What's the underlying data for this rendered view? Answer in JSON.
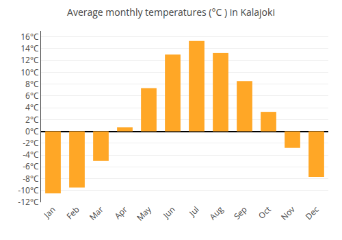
{
  "chart_data": {
    "type": "bar",
    "title": "Average monthly temperatures (°C ) in Kalajoki",
    "categories": [
      "Jan",
      "Feb",
      "Mar",
      "Apr",
      "May",
      "Jun",
      "Jul",
      "Aug",
      "Sep",
      "Oct",
      "Nov",
      "Dec"
    ],
    "values": [
      -10.5,
      -9.5,
      -5.0,
      0.7,
      7.3,
      13.0,
      15.3,
      13.3,
      8.5,
      3.3,
      -2.8,
      -7.7
    ],
    "color": "#FFA726",
    "ylim": [
      -12,
      17
    ],
    "yticks": [
      {
        "value": -12,
        "label": "-12°C"
      },
      {
        "value": -10,
        "label": "-10°C"
      },
      {
        "value": -8,
        "label": "-8°C"
      },
      {
        "value": -6,
        "label": "-6°C"
      },
      {
        "value": -4,
        "label": "-4°C"
      },
      {
        "value": -2,
        "label": "-2°C"
      },
      {
        "value": 0,
        "label": "0°C"
      },
      {
        "value": 2,
        "label": "2°C"
      },
      {
        "value": 4,
        "label": "4°C"
      },
      {
        "value": 6,
        "label": "6°C"
      },
      {
        "value": 8,
        "label": "8°C"
      },
      {
        "value": 10,
        "label": "10°C"
      },
      {
        "value": 12,
        "label": "12°C"
      },
      {
        "value": 14,
        "label": "14°C"
      },
      {
        "value": 16,
        "label": "16°C"
      }
    ],
    "grid": true
  }
}
